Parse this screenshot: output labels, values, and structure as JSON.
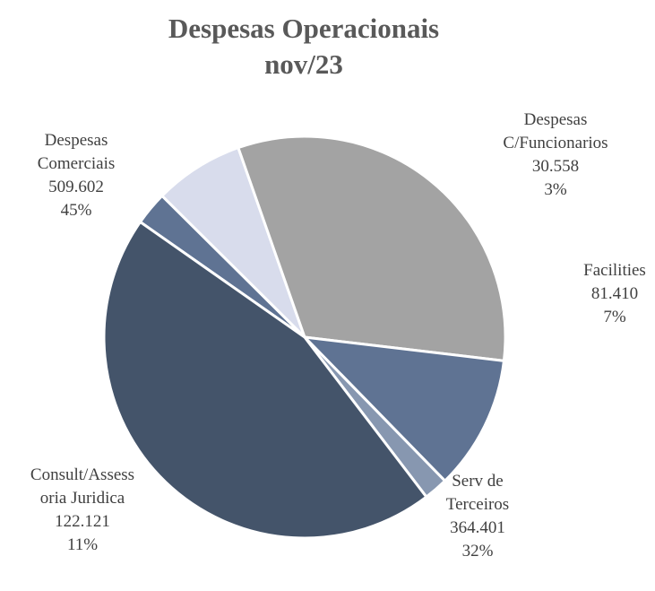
{
  "chart_data": {
    "type": "pie",
    "title": "Despesas Operacionais",
    "subtitle": "nov/23",
    "slices": [
      {
        "label_lines": [
          "Despesas",
          "C/Funcionarios"
        ],
        "value": 30558,
        "value_text": "30.558",
        "pct_text": "3%",
        "color": "#5f7393"
      },
      {
        "label_lines": [
          "Facilities"
        ],
        "value": 81410,
        "value_text": "81.410",
        "pct_text": "7%",
        "color": "#d8dcec"
      },
      {
        "label_lines": [
          "Serv de",
          "Terceiros"
        ],
        "value": 364401,
        "value_text": "364.401",
        "pct_text": "32%",
        "color": "#a3a3a3"
      },
      {
        "label_lines": [
          "Consult/Assess",
          "oria Juridica"
        ],
        "value": 122121,
        "value_text": "122.121",
        "pct_text": "11%",
        "color": "#5f7393"
      },
      {
        "label_lines": [
          ""
        ],
        "value": 22000,
        "value_text": "",
        "pct_text": "",
        "color": "#8797b0"
      },
      {
        "label_lines": [
          "Despesas",
          "Comerciais"
        ],
        "value": 509602,
        "value_text": "509.602",
        "pct_text": "45%",
        "color": "#44546a"
      }
    ]
  }
}
